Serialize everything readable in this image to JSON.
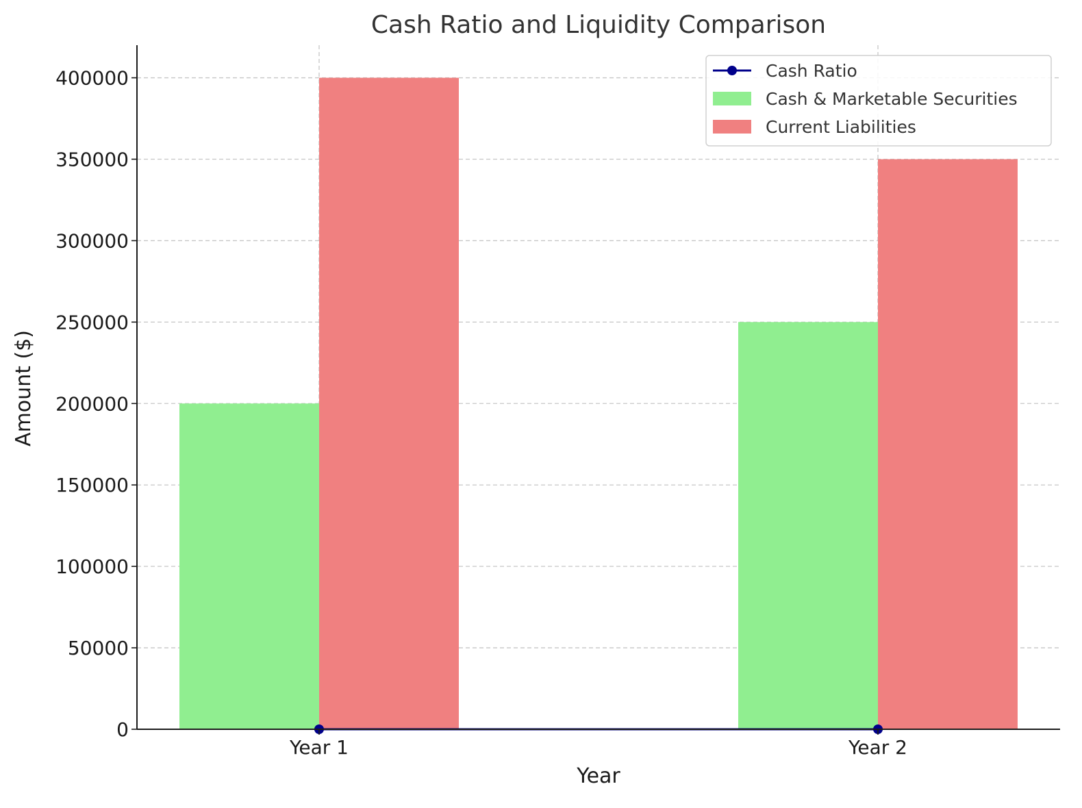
{
  "chart_data": {
    "type": "bar",
    "title": "Cash Ratio and Liquidity Comparison",
    "xlabel": "Year",
    "ylabel": "Amount ($)",
    "categories": [
      "Year 1",
      "Year 2"
    ],
    "ylim": [
      0,
      420000
    ],
    "yticks": [
      0,
      50000,
      100000,
      150000,
      200000,
      250000,
      300000,
      350000,
      400000
    ],
    "grid": true,
    "legend_position": "top-right",
    "series": [
      {
        "name": "Cash & Marketable Securities",
        "kind": "bar",
        "color": "#90ee90",
        "values": [
          200000,
          250000
        ]
      },
      {
        "name": "Current Liabilities",
        "kind": "bar",
        "color": "#f08080",
        "values": [
          400000,
          350000
        ]
      },
      {
        "name": "Cash Ratio",
        "kind": "line",
        "marker": "circle",
        "color": "#00008b",
        "values": [
          0.5,
          0.71
        ]
      }
    ],
    "legend_order": [
      "Cash Ratio",
      "Cash & Marketable Securities",
      "Current Liabilities"
    ]
  }
}
